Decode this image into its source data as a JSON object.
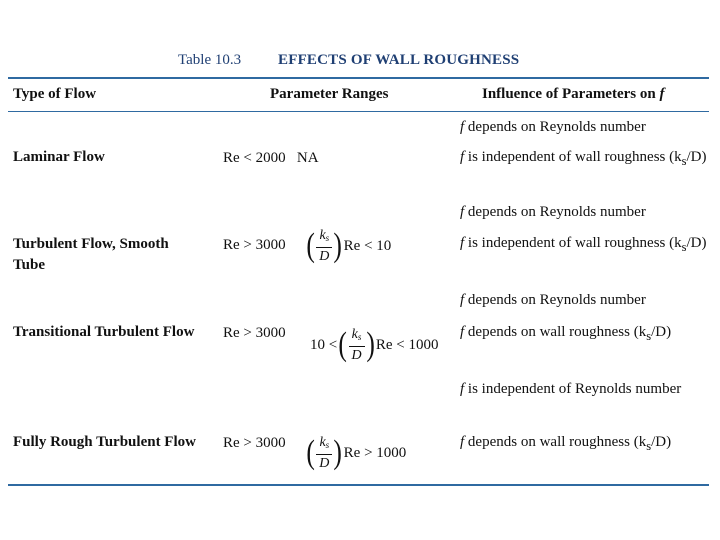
{
  "table": {
    "number": "Table 10.3",
    "title": "EFFECTS OF WALL ROUGHNESS",
    "headers": {
      "type_of_flow": "Type of Flow",
      "parameter_ranges": "Parameter Ranges",
      "influence_prefix": "Influence of Parameters on ",
      "influence_var": "f"
    },
    "rows": [
      {
        "type": "Laminar Flow",
        "range_re": "Re < 2000",
        "range_rel": "NA",
        "influence": [
          {
            "f": "f",
            "text": " depends on Reynolds number"
          },
          {
            "f": "f",
            "text": " is independent of wall roughness (k",
            "sub": "s",
            "tail": "/D)"
          }
        ]
      },
      {
        "type": "Turbulent Flow, Smooth Tube",
        "range_re": "Re > 3000",
        "range_rel": "(ks/D) Re < 10",
        "influence": [
          {
            "f": "f",
            "text": " depends on Reynolds number"
          },
          {
            "f": "f",
            "text": " is independent of wall roughness (k",
            "sub": "s",
            "tail": "/D)"
          }
        ]
      },
      {
        "type": "Transitional Turbulent Flow",
        "range_re": "Re > 3000",
        "range_rel": "10 < (ks/D) Re < 1000",
        "influence": [
          {
            "f": "f",
            "text": " depends on Reynolds number"
          },
          {
            "f": "f",
            "text": " depends on wall roughness (k",
            "sub": "s",
            "tail": "/D)"
          }
        ]
      },
      {
        "type": "Fully Rough Turbulent Flow",
        "range_re": "Re > 3000",
        "range_rel": "(ks/D) Re > 1000",
        "influence": [
          {
            "f": "f",
            "text": " is independent of Reynolds number"
          },
          {
            "f": "f",
            "text": " depends on wall roughness (k",
            "sub": "s",
            "tail": "/D)"
          }
        ]
      }
    ],
    "symbols": {
      "ks": "k",
      "ks_sub": "s",
      "D": "D",
      "Re": "Re",
      "lt10": "< 10",
      "lt1000": "< 1000",
      "gt1000": "> 1000",
      "ten_lt": "10 <"
    }
  }
}
